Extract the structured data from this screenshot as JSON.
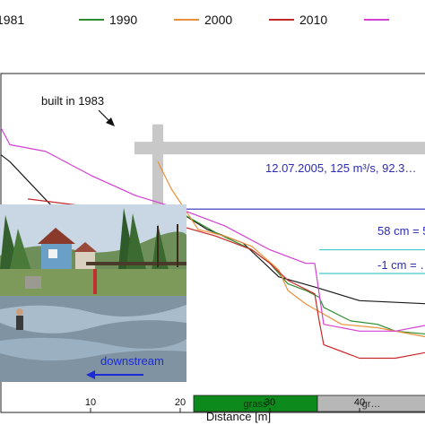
{
  "chart_data": {
    "type": "line",
    "xlabel": "Distance [m]",
    "xlim": [
      0,
      48
    ],
    "ylim": [
      0,
      100
    ],
    "x_ticks": [
      10,
      20,
      30,
      40
    ],
    "series": [
      {
        "name": "1981",
        "color": "#1a1a1a",
        "x": [
          0,
          1,
          6,
          11,
          17.5,
          20,
          23,
          27,
          31,
          35,
          40,
          48
        ],
        "y": [
          76,
          74,
          60,
          53,
          61,
          59,
          54,
          50,
          40,
          37,
          33,
          32
        ]
      },
      {
        "name": "1990",
        "color": "#2e8b2e",
        "x": [
          17,
          20,
          24,
          28,
          30,
          32,
          34,
          35.5,
          36,
          39,
          42,
          44,
          48
        ],
        "y": [
          61,
          59,
          53,
          48,
          44,
          38,
          36,
          34,
          31,
          27,
          26,
          24,
          23
        ]
      },
      {
        "name": "2000",
        "color": "#e8923a",
        "x": [
          17.5,
          19,
          22,
          25,
          28,
          31,
          32,
          34,
          36,
          38,
          42,
          48
        ],
        "y": [
          74,
          66,
          54,
          52,
          49,
          42,
          36,
          32,
          29,
          26,
          25,
          22
        ]
      },
      {
        "name": "2010",
        "color": "#c62828",
        "x": [
          3,
          9,
          17.5,
          20,
          24,
          28,
          30,
          32,
          35,
          35.5,
          36,
          40,
          44,
          48
        ],
        "y": [
          63,
          61,
          59,
          55,
          52,
          48,
          44,
          39,
          35,
          27,
          20,
          16,
          16,
          18
        ]
      },
      {
        "name": "",
        "color": "#d43fd4",
        "x": [
          0,
          1,
          5,
          10,
          15,
          20,
          25,
          30,
          34,
          35,
          35.5,
          36,
          40,
          44,
          48
        ],
        "y": [
          84,
          79,
          77,
          70,
          64,
          60,
          55,
          48,
          44,
          44,
          35,
          26,
          24,
          24,
          26
        ]
      }
    ],
    "annotations": {
      "built_label": "built in 1983",
      "flood_label": "12.07.2005, 125 m³/s, 92.3…",
      "level_58_label": "58 cm = 5…",
      "level_neg1_label": "-1 cm = …"
    },
    "reference_lines": [
      {
        "label": "flood",
        "y": 60
      },
      {
        "label": "58 cm",
        "y": 48
      },
      {
        "label": "-1 cm",
        "y": 41
      }
    ],
    "bridge": {
      "x": 17.5,
      "y_top": 85,
      "y_bottom": 61,
      "deck_y": 78
    },
    "inset_photo_label": "downstream",
    "landuse": [
      {
        "label": "grass",
        "x_start": 21.5,
        "x_end": 35.3,
        "color": "#0c8a1c"
      },
      {
        "label": "gr…",
        "x_start": 35.3,
        "x_end": 48,
        "color": "#b7b7b7"
      }
    ]
  }
}
